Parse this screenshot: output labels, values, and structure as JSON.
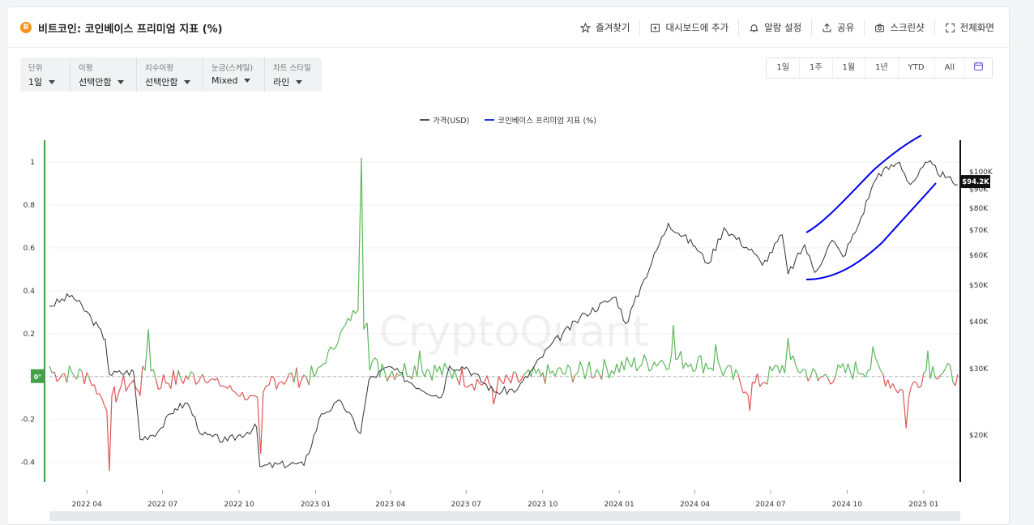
{
  "header": {
    "coin_symbol": "B",
    "title": "비트코인: 코인베이스 프리미엄 지표 (%)",
    "actions": [
      {
        "label": "즐겨찾기",
        "icon": "star-icon"
      },
      {
        "label": "대시보드에 추가",
        "icon": "dashboard-add-icon"
      },
      {
        "label": "알람 설정",
        "icon": "bell-icon"
      },
      {
        "label": "공유",
        "icon": "share-icon"
      },
      {
        "label": "스크린샷",
        "icon": "camera-icon"
      },
      {
        "label": "전체화면",
        "icon": "fullscreen-icon"
      }
    ]
  },
  "controls": [
    {
      "label": "단위",
      "value": "1일"
    },
    {
      "label": "이평",
      "value": "선택안함"
    },
    {
      "label": "지수이평",
      "value": "선택안함"
    },
    {
      "label": "눈금(스케일)",
      "value": "Mixed"
    },
    {
      "label": "차트 스타일",
      "value": "라인"
    }
  ],
  "ranges": [
    "1일",
    "1주",
    "1월",
    "1년",
    "YTD",
    "All"
  ],
  "calendar_icon": "calendar-icon",
  "watermark": "CryptoQuant",
  "colors": {
    "price": "#333333",
    "premium_pos": "#5cb85c",
    "premium_neg": "#e05555",
    "annotation": "#0000ee",
    "axis_green": "#43a047"
  },
  "chart_data": {
    "type": "line",
    "legend": [
      {
        "name": "가격(USD)",
        "color": "#555555"
      },
      {
        "name": "코인베이스 프리미엄 지표 (%)",
        "color": "#1f3bd6"
      }
    ],
    "x_ticks": [
      "2022 04",
      "2022 07",
      "2022 10",
      "2023 01",
      "2023 04",
      "2023 07",
      "2023 10",
      "2024 01",
      "2024 04",
      "2024 07",
      "2024 10",
      "2025 01"
    ],
    "x_range": [
      "2022-03-01",
      "2025-02-28"
    ],
    "y_left": {
      "ticks": [
        1,
        0.8,
        0.6,
        0.4,
        0.2,
        0,
        -0.2,
        -0.4
      ],
      "range": [
        -0.53,
        1.08
      ],
      "zero_label": "0°"
    },
    "y_right": {
      "scale": "log",
      "ticks": [
        "$100K",
        "$90K",
        "$80K",
        "$70K",
        "$60K",
        "$50K",
        "$40K",
        "$30K",
        "$20K"
      ],
      "tick_values": [
        100000,
        90000,
        80000,
        70000,
        60000,
        50000,
        40000,
        30000,
        20000
      ],
      "current_label": "$94.2K",
      "current_value": 94200
    },
    "price_series": [
      {
        "date": "2022-03-01",
        "value": 44000
      },
      {
        "date": "2022-03-28",
        "value": 47000
      },
      {
        "date": "2022-04-20",
        "value": 41000
      },
      {
        "date": "2022-05-07",
        "value": 36000
      },
      {
        "date": "2022-05-12",
        "value": 29000
      },
      {
        "date": "2022-06-10",
        "value": 29500
      },
      {
        "date": "2022-06-18",
        "value": 19500
      },
      {
        "date": "2022-07-10",
        "value": 20500
      },
      {
        "date": "2022-07-30",
        "value": 23500
      },
      {
        "date": "2022-08-14",
        "value": 24300
      },
      {
        "date": "2022-09-01",
        "value": 20000
      },
      {
        "date": "2022-10-01",
        "value": 19300
      },
      {
        "date": "2022-11-05",
        "value": 21000
      },
      {
        "date": "2022-11-09",
        "value": 16500
      },
      {
        "date": "2022-12-20",
        "value": 16800
      },
      {
        "date": "2023-01-01",
        "value": 16600
      },
      {
        "date": "2023-01-22",
        "value": 22800
      },
      {
        "date": "2023-02-15",
        "value": 24500
      },
      {
        "date": "2023-03-10",
        "value": 20200
      },
      {
        "date": "2023-03-20",
        "value": 28000
      },
      {
        "date": "2023-04-14",
        "value": 30400
      },
      {
        "date": "2023-05-10",
        "value": 27500
      },
      {
        "date": "2023-06-15",
        "value": 25200
      },
      {
        "date": "2023-06-25",
        "value": 30500
      },
      {
        "date": "2023-07-15",
        "value": 30300
      },
      {
        "date": "2023-08-18",
        "value": 26000
      },
      {
        "date": "2023-09-15",
        "value": 26500
      },
      {
        "date": "2023-10-24",
        "value": 34500
      },
      {
        "date": "2023-12-05",
        "value": 42000
      },
      {
        "date": "2024-01-11",
        "value": 46500
      },
      {
        "date": "2024-01-23",
        "value": 39500
      },
      {
        "date": "2024-02-14",
        "value": 51800
      },
      {
        "date": "2024-03-14",
        "value": 73000
      },
      {
        "date": "2024-04-15",
        "value": 63500
      },
      {
        "date": "2024-05-01",
        "value": 57000
      },
      {
        "date": "2024-05-20",
        "value": 71000
      },
      {
        "date": "2024-06-25",
        "value": 60800
      },
      {
        "date": "2024-07-05",
        "value": 56500
      },
      {
        "date": "2024-07-29",
        "value": 68000
      },
      {
        "date": "2024-08-05",
        "value": 53500
      },
      {
        "date": "2024-08-25",
        "value": 64000
      },
      {
        "date": "2024-09-06",
        "value": 54000
      },
      {
        "date": "2024-09-27",
        "value": 65800
      },
      {
        "date": "2024-10-10",
        "value": 59500
      },
      {
        "date": "2024-10-29",
        "value": 72500
      },
      {
        "date": "2024-11-13",
        "value": 90000
      },
      {
        "date": "2024-11-22",
        "value": 99000
      },
      {
        "date": "2024-12-17",
        "value": 106000
      },
      {
        "date": "2024-12-30",
        "value": 92500
      },
      {
        "date": "2025-01-20",
        "value": 106000
      },
      {
        "date": "2025-02-10",
        "value": 96500
      },
      {
        "date": "2025-02-25",
        "value": 92500
      }
    ],
    "premium_series": [
      {
        "date": "2022-03-01",
        "value": 0.05
      },
      {
        "date": "2022-04-15",
        "value": 0.02
      },
      {
        "date": "2022-05-12",
        "value": -0.44
      },
      {
        "date": "2022-05-20",
        "value": -0.12
      },
      {
        "date": "2022-06-18",
        "value": -0.09
      },
      {
        "date": "2022-06-28",
        "value": 0.22
      },
      {
        "date": "2022-07-10",
        "value": -0.06
      },
      {
        "date": "2022-09-01",
        "value": 0.01
      },
      {
        "date": "2022-11-10",
        "value": -0.36
      },
      {
        "date": "2022-11-20",
        "value": -0.04
      },
      {
        "date": "2023-01-15",
        "value": 0.01
      },
      {
        "date": "2023-03-11",
        "value": 1.02
      },
      {
        "date": "2023-03-18",
        "value": 0.25
      },
      {
        "date": "2023-04-05",
        "value": 0.06
      },
      {
        "date": "2023-05-20",
        "value": 0.12
      },
      {
        "date": "2023-07-01",
        "value": 0.03
      },
      {
        "date": "2023-08-17",
        "value": -0.13
      },
      {
        "date": "2023-10-15",
        "value": 0.02
      },
      {
        "date": "2023-12-10",
        "value": 0.07
      },
      {
        "date": "2024-03-20",
        "value": 0.24
      },
      {
        "date": "2024-05-10",
        "value": 0.15
      },
      {
        "date": "2024-06-20",
        "value": -0.16
      },
      {
        "date": "2024-08-05",
        "value": 0.18
      },
      {
        "date": "2024-09-10",
        "value": -0.02
      },
      {
        "date": "2024-11-15",
        "value": 0.14
      },
      {
        "date": "2024-12-25",
        "value": -0.24
      },
      {
        "date": "2025-01-20",
        "value": 0.12
      },
      {
        "date": "2025-02-25",
        "value": 0.01
      }
    ]
  }
}
